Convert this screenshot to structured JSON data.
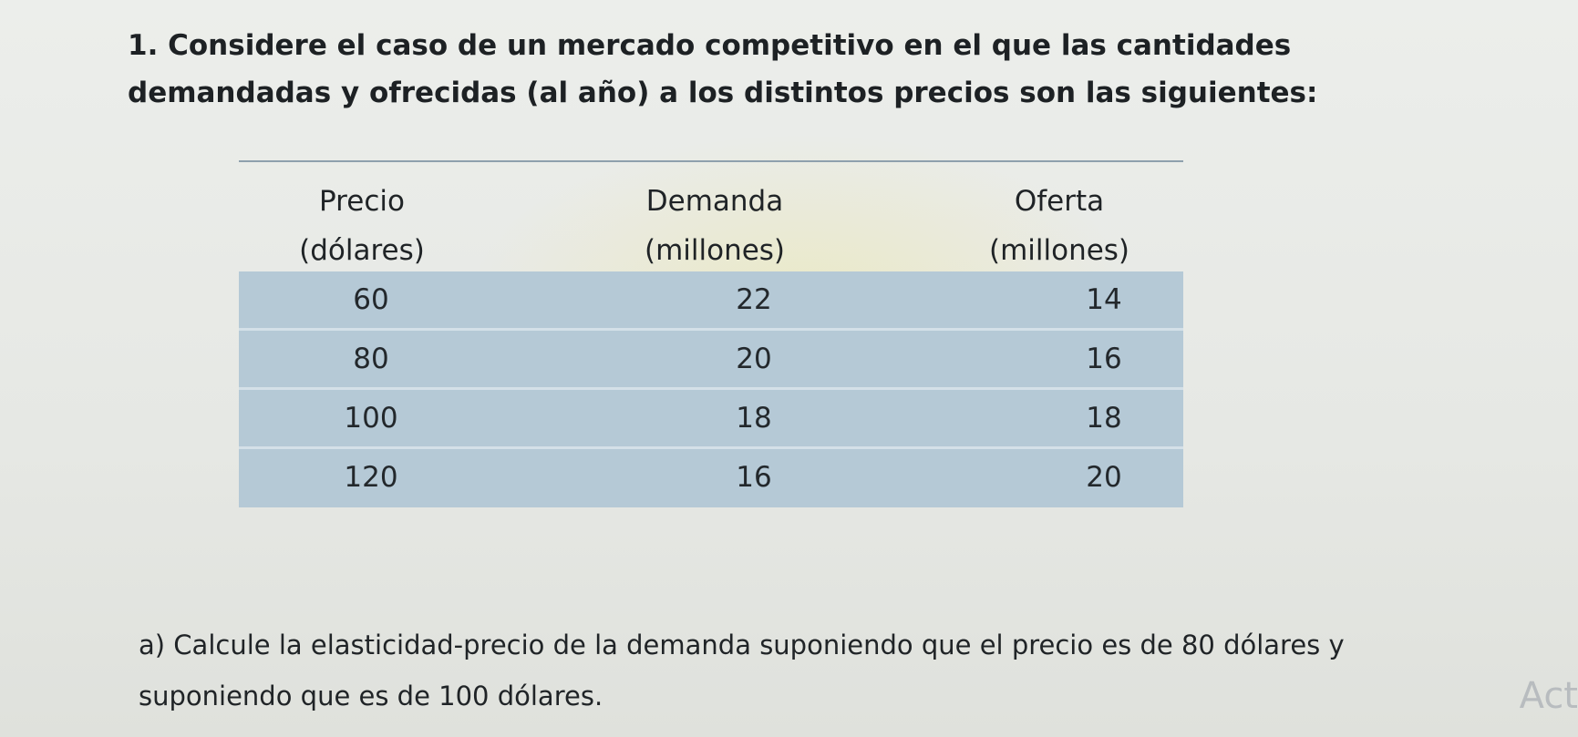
{
  "question": {
    "title": "1. Considere el caso de un mercado competitivo en el que las cantidades demandadas y ofrecidas (al año) a los distintos precios son las siguientes:"
  },
  "table": {
    "headers": [
      [
        "Precio",
        "(dólares)"
      ],
      [
        "Demanda",
        "(millones)"
      ],
      [
        "Oferta",
        "(millones)"
      ]
    ],
    "rows": [
      [
        "60",
        "22",
        "14"
      ],
      [
        "80",
        "20",
        "16"
      ],
      [
        "100",
        "18",
        "18"
      ],
      [
        "120",
        "16",
        "20"
      ]
    ],
    "row_fill_color": "#b5c9d6"
  },
  "subquestion": {
    "text": "a) Calcule la elasticidad-precio de la demanda suponiendo que el precio es de 80 dólares y suponiendo que es de 100 dólares."
  },
  "watermark": {
    "text": "Act"
  }
}
